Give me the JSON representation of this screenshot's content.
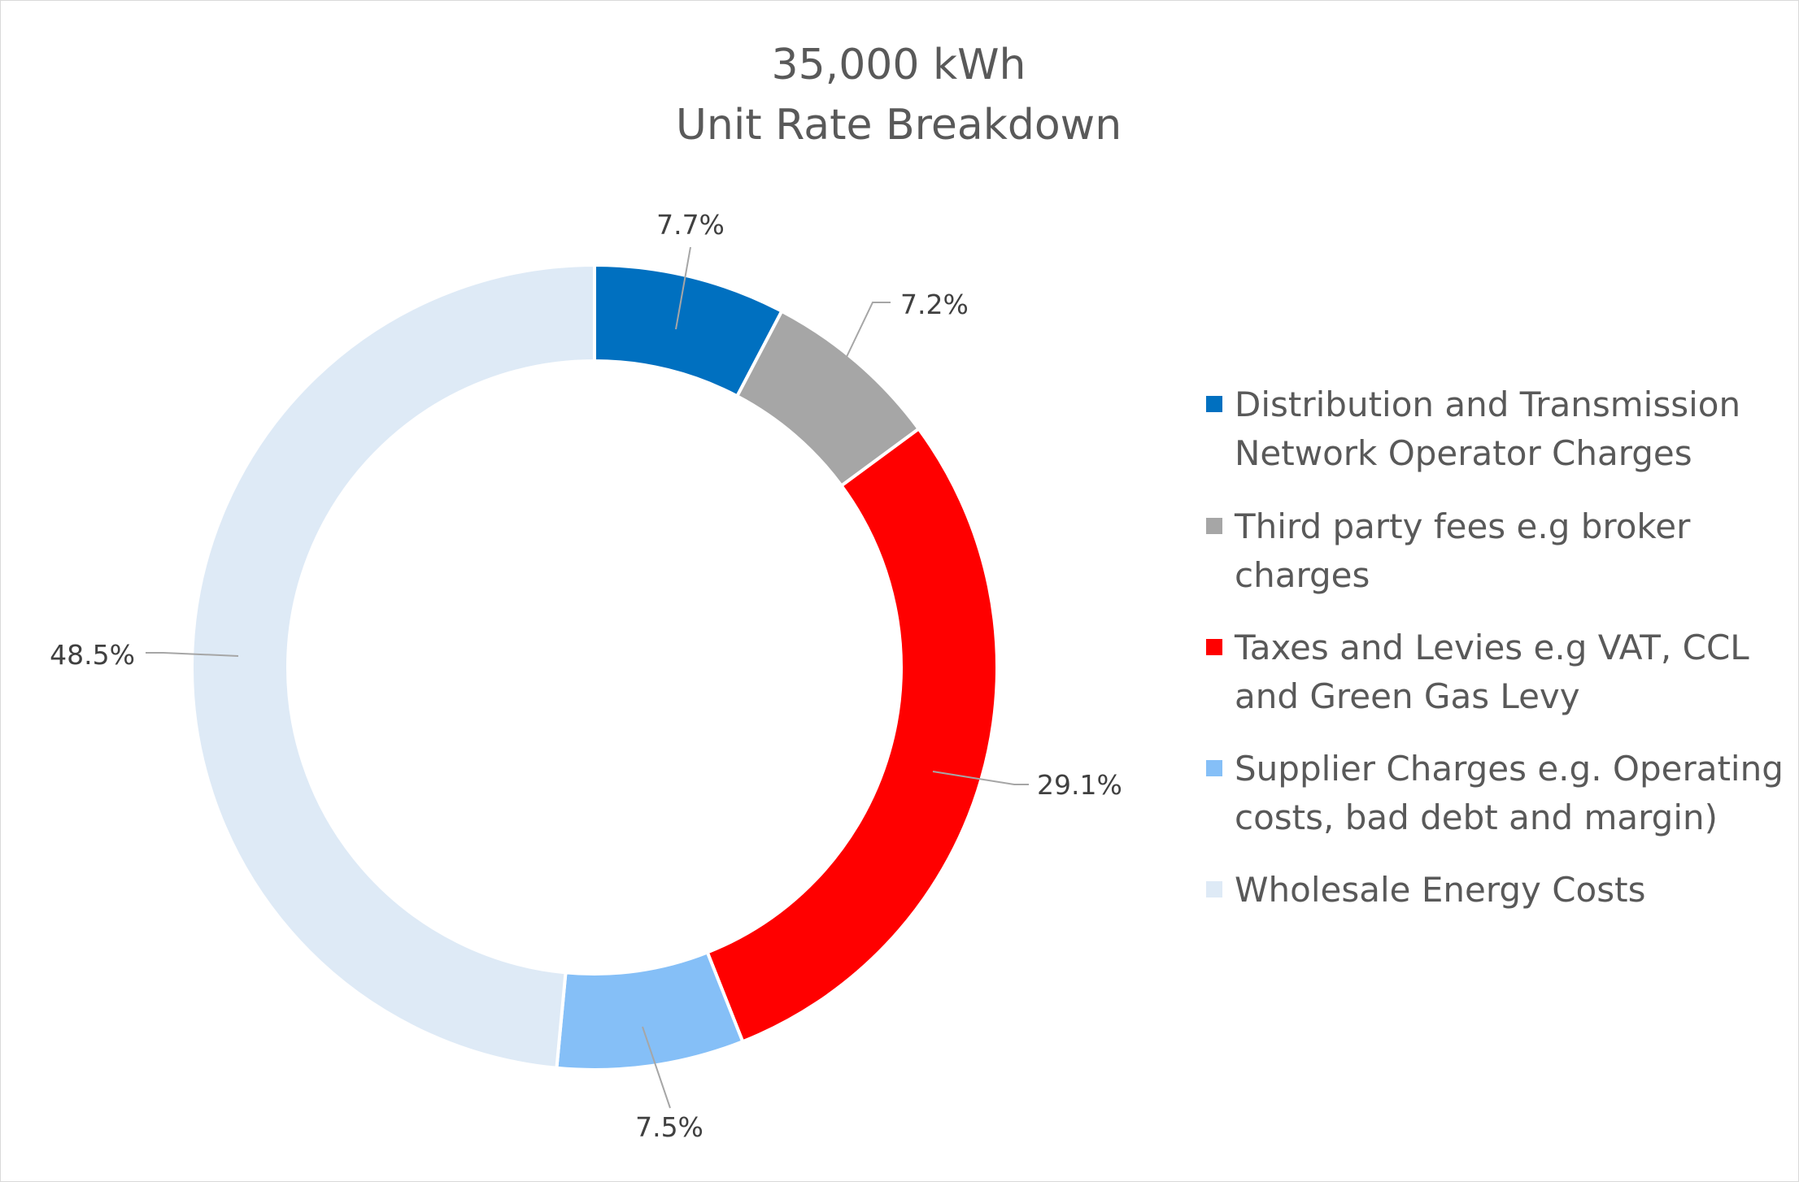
{
  "chart_data": {
    "type": "pie",
    "subtype": "doughnut",
    "title": [
      "35,000 kWh",
      "Unit Rate Breakdown"
    ],
    "categories": [
      "Distribution and Transmission Network Operator Charges",
      "Third party fees e.g broker charges",
      "Taxes and Levies e.g VAT, CCL and Green Gas Levy",
      "Supplier Charges e.g. Operating costs, bad debt and margin)",
      "Wholesale Energy Costs"
    ],
    "values": [
      7.7,
      7.2,
      29.1,
      7.5,
      48.5
    ],
    "data_labels": [
      "7.7%",
      "7.2%",
      "29.1%",
      "7.5%",
      "48.5%"
    ],
    "colors": [
      "#0070c0",
      "#a6a6a6",
      "#ff0000",
      "#85bff7",
      "#deeaf6"
    ],
    "legend": {
      "position": "right",
      "entries": [
        [
          "Distribution and Transmission",
          "Network Operator Charges"
        ],
        [
          "Third party fees e.g broker",
          "charges"
        ],
        [
          "Taxes and Levies e.g VAT, CCL",
          "and Green Gas Levy"
        ],
        [
          "Supplier Charges e.g. Operating",
          "costs, bad debt and margin)"
        ],
        [
          "Wholesale Energy Costs"
        ]
      ]
    }
  }
}
